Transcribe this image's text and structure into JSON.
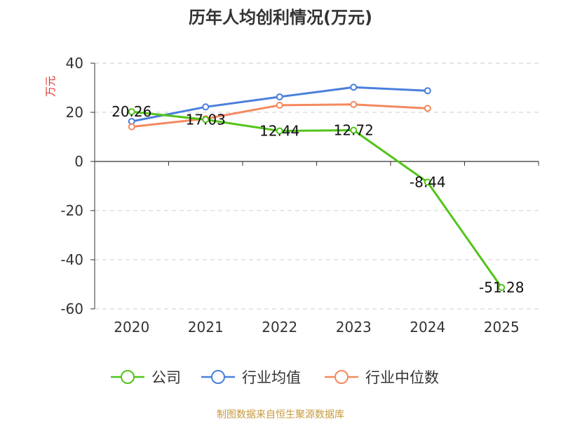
{
  "chart_data": {
    "type": "line",
    "title": "历年人均创利情况(万元)",
    "ylabel": "万元",
    "xlabel": "",
    "categories": [
      "2020",
      "2021",
      "2022",
      "2023",
      "2024",
      "2025"
    ],
    "ylim": [
      -60,
      40
    ],
    "yticks": [
      40,
      20,
      0,
      -20,
      -40,
      -60
    ],
    "grid": true,
    "legend_position": "bottom",
    "series": [
      {
        "name": "公司",
        "color": "#52c41a",
        "values": [
          20.26,
          17.03,
          12.44,
          12.72,
          -8.44,
          -51.28
        ],
        "labels": [
          "20.26",
          "17.03",
          "12.44",
          "12.72",
          "-8.44",
          "-51.28"
        ]
      },
      {
        "name": "行业均值",
        "color": "#4a7fdc",
        "values": [
          16.3,
          22.2,
          26.3,
          30.2,
          28.8,
          null
        ]
      },
      {
        "name": "行业中位数",
        "color": "#f4895f",
        "values": [
          14.1,
          17.4,
          22.9,
          23.2,
          21.6,
          null
        ]
      }
    ]
  },
  "footer": {
    "source": "制图数据来自恒生聚源数据库"
  }
}
